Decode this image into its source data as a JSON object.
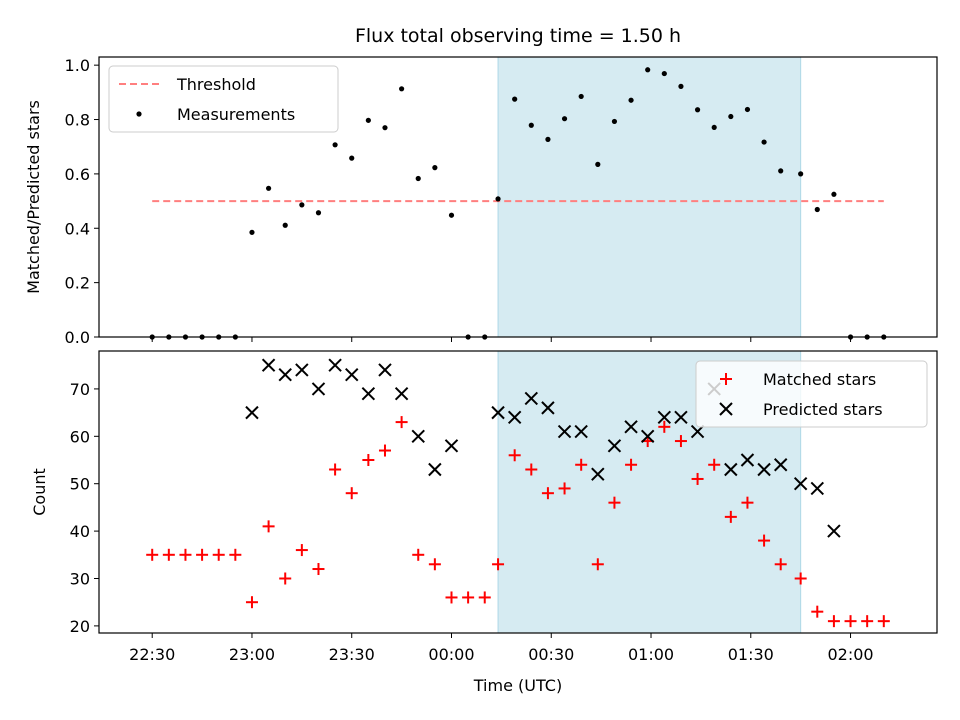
{
  "chart_data": [
    {
      "type": "scatter",
      "title": "Flux total observing time = 1.50 h",
      "ylabel": "Matched/Predicted stars",
      "xlabel": "",
      "ylim": [
        0,
        1.03
      ],
      "yticks": [
        0.0,
        0.2,
        0.4,
        0.6,
        0.8,
        1.0
      ],
      "ytick_labels": [
        "0.0",
        "0.2",
        "0.4",
        "0.6",
        "0.8",
        "1.0"
      ],
      "grid": false,
      "legend_position": "top-left",
      "highlight_span": {
        "from": "00:14",
        "to": "01:45",
        "color": "#add8e6"
      },
      "series": [
        {
          "name": "Threshold",
          "kind": "dashed-line",
          "color": "#ff7f7f",
          "x": [
            "22:30",
            "02:10"
          ],
          "y": [
            0.5,
            0.5
          ]
        },
        {
          "name": "Measurements",
          "kind": "dot",
          "color": "#000000",
          "x": [
            "22:30",
            "22:35",
            "22:40",
            "22:45",
            "22:50",
            "22:55",
            "23:00",
            "23:05",
            "23:10",
            "23:15",
            "23:20",
            "23:25",
            "23:30",
            "23:35",
            "23:40",
            "23:45",
            "23:50",
            "23:55",
            "00:00",
            "00:05",
            "00:10",
            "00:14",
            "00:19",
            "00:24",
            "00:29",
            "00:34",
            "00:39",
            "00:44",
            "00:49",
            "00:54",
            "00:59",
            "01:04",
            "01:09",
            "01:14",
            "01:19",
            "01:24",
            "01:29",
            "01:34",
            "01:39",
            "01:45",
            "01:50",
            "01:55",
            "02:00",
            "02:05",
            "02:10"
          ],
          "y": [
            0,
            0,
            0,
            0,
            0,
            0,
            0.385,
            0.547,
            0.411,
            0.486,
            0.457,
            0.707,
            0.658,
            0.797,
            0.77,
            0.913,
            0.583,
            0.623,
            0.448,
            0,
            0,
            0.508,
            0.875,
            0.779,
            0.727,
            0.803,
            0.885,
            0.635,
            0.793,
            0.871,
            0.983,
            0.969,
            0.922,
            0.836,
            0.771,
            0.811,
            0.837,
            0.717,
            0.611,
            0.6,
            0.469,
            0.525,
            0,
            0,
            0
          ]
        }
      ]
    },
    {
      "type": "scatter",
      "title": "",
      "xlabel": "Time (UTC)",
      "ylabel": "Count",
      "ylim": [
        18.5,
        78
      ],
      "yticks": [
        20,
        30,
        40,
        50,
        60,
        70
      ],
      "ytick_labels": [
        "20",
        "30",
        "40",
        "50",
        "60",
        "70"
      ],
      "xticks": [
        "22:30",
        "23:00",
        "23:30",
        "00:00",
        "00:30",
        "01:00",
        "01:30",
        "02:00"
      ],
      "xtick_labels": [
        "22:30",
        "23:00",
        "23:30",
        "00:00",
        "00:30",
        "01:00",
        "01:30",
        "02:00"
      ],
      "grid": false,
      "legend_position": "top-right",
      "highlight_span": {
        "from": "00:14",
        "to": "01:45",
        "color": "#add8e6"
      },
      "series": [
        {
          "name": "Matched stars",
          "kind": "plus",
          "color": "#ff0000",
          "x": [
            "22:30",
            "22:35",
            "22:40",
            "22:45",
            "22:50",
            "22:55",
            "23:00",
            "23:05",
            "23:10",
            "23:15",
            "23:20",
            "23:25",
            "23:30",
            "23:35",
            "23:40",
            "23:45",
            "23:50",
            "23:55",
            "00:00",
            "00:05",
            "00:10",
            "00:14",
            "00:19",
            "00:24",
            "00:29",
            "00:34",
            "00:39",
            "00:44",
            "00:49",
            "00:54",
            "00:59",
            "01:04",
            "01:09",
            "01:14",
            "01:19",
            "01:24",
            "01:29",
            "01:34",
            "01:39",
            "01:45",
            "01:50",
            "01:55",
            "02:00",
            "02:05",
            "02:10"
          ],
          "y": [
            35,
            35,
            35,
            35,
            35,
            35,
            25,
            41,
            30,
            36,
            32,
            53,
            48,
            55,
            57,
            63,
            35,
            33,
            26,
            26,
            26,
            33,
            56,
            53,
            48,
            49,
            54,
            33,
            46,
            54,
            59,
            62,
            59,
            51,
            54,
            43,
            46,
            38,
            33,
            30,
            23,
            21,
            21,
            21,
            21
          ]
        },
        {
          "name": "Predicted stars",
          "kind": "x",
          "color": "#000000",
          "x": [
            "23:00",
            "23:05",
            "23:10",
            "23:15",
            "23:20",
            "23:25",
            "23:30",
            "23:35",
            "23:40",
            "23:45",
            "23:50",
            "23:55",
            "00:00",
            "00:14",
            "00:19",
            "00:24",
            "00:29",
            "00:34",
            "00:39",
            "00:44",
            "00:49",
            "00:54",
            "00:59",
            "01:04",
            "01:09",
            "01:14",
            "01:19",
            "01:24",
            "01:29",
            "01:34",
            "01:39",
            "01:45",
            "01:50",
            "01:55"
          ],
          "y": [
            65,
            75,
            73,
            74,
            70,
            75,
            73,
            69,
            74,
            69,
            60,
            53,
            58,
            65,
            64,
            68,
            66,
            61,
            61,
            52,
            58,
            62,
            60,
            64,
            64,
            61,
            70,
            53,
            55,
            53,
            54,
            50,
            49,
            40
          ]
        }
      ]
    }
  ]
}
